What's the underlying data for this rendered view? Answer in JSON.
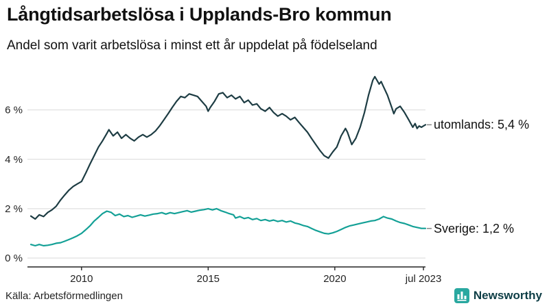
{
  "header": {
    "title": "Långtidsarbetslösa i Upplands-Bro kommun",
    "subtitle": "Andel som varit arbetslösa i minst ett år uppdelat på födelseland"
  },
  "footer": {
    "source": "Källa: Arbetsförmedlingen",
    "brand": "Newsworthy"
  },
  "colors": {
    "grid": "#d9d9d9",
    "axis": "#222222",
    "tick_text": "#222222",
    "label_text": "#111111",
    "connector": "#888888",
    "brand_teal": "#2aa8a0",
    "brand_dark": "#0d3d45"
  },
  "chart_data": {
    "type": "line",
    "title": "Långtidsarbetslösa i Upplands-Bro kommun",
    "subtitle": "Andel som varit arbetslösa i minst ett år uppdelat på födelseland",
    "xlabel": "",
    "ylabel": "",
    "xlim": [
      2008.0,
      2023.58
    ],
    "ylim": [
      0,
      7.6
    ],
    "grid": "horizontal",
    "legend_position": "right-end-labels",
    "yticks": [
      {
        "value": 0,
        "label": "0 %"
      },
      {
        "value": 2,
        "label": "2 %"
      },
      {
        "value": 4,
        "label": "4 %"
      },
      {
        "value": 6,
        "label": "6 %"
      }
    ],
    "xticks": [
      {
        "value": 2010,
        "label": "2010"
      },
      {
        "value": 2015,
        "label": "2015"
      },
      {
        "value": 2020,
        "label": "2020"
      },
      {
        "value": 2023.5,
        "label": "jul 2023"
      }
    ],
    "series": [
      {
        "name": "utomlands",
        "end_label": "utomlands: 5,4 %",
        "color": "#1d3c43",
        "points": [
          [
            2008.0,
            1.7
          ],
          [
            2008.17,
            1.58
          ],
          [
            2008.33,
            1.75
          ],
          [
            2008.5,
            1.68
          ],
          [
            2008.67,
            1.85
          ],
          [
            2008.83,
            1.95
          ],
          [
            2009.0,
            2.1
          ],
          [
            2009.17,
            2.35
          ],
          [
            2009.33,
            2.55
          ],
          [
            2009.5,
            2.75
          ],
          [
            2009.67,
            2.9
          ],
          [
            2009.83,
            3.0
          ],
          [
            2010.0,
            3.1
          ],
          [
            2010.17,
            3.45
          ],
          [
            2010.33,
            3.8
          ],
          [
            2010.5,
            4.15
          ],
          [
            2010.67,
            4.5
          ],
          [
            2010.83,
            4.75
          ],
          [
            2011.0,
            5.05
          ],
          [
            2011.08,
            5.2
          ],
          [
            2011.25,
            4.95
          ],
          [
            2011.42,
            5.1
          ],
          [
            2011.58,
            4.85
          ],
          [
            2011.75,
            5.0
          ],
          [
            2011.92,
            4.85
          ],
          [
            2012.08,
            4.75
          ],
          [
            2012.25,
            4.9
          ],
          [
            2012.42,
            5.0
          ],
          [
            2012.58,
            4.9
          ],
          [
            2012.75,
            5.0
          ],
          [
            2012.92,
            5.15
          ],
          [
            2013.08,
            5.35
          ],
          [
            2013.25,
            5.6
          ],
          [
            2013.42,
            5.85
          ],
          [
            2013.58,
            6.1
          ],
          [
            2013.75,
            6.35
          ],
          [
            2013.92,
            6.55
          ],
          [
            2014.08,
            6.5
          ],
          [
            2014.25,
            6.65
          ],
          [
            2014.42,
            6.6
          ],
          [
            2014.58,
            6.55
          ],
          [
            2014.75,
            6.35
          ],
          [
            2014.92,
            6.15
          ],
          [
            2015.0,
            5.95
          ],
          [
            2015.08,
            6.1
          ],
          [
            2015.25,
            6.35
          ],
          [
            2015.42,
            6.65
          ],
          [
            2015.58,
            6.7
          ],
          [
            2015.75,
            6.5
          ],
          [
            2015.92,
            6.6
          ],
          [
            2016.08,
            6.45
          ],
          [
            2016.25,
            6.55
          ],
          [
            2016.42,
            6.3
          ],
          [
            2016.58,
            6.4
          ],
          [
            2016.75,
            6.2
          ],
          [
            2016.92,
            6.25
          ],
          [
            2017.08,
            6.05
          ],
          [
            2017.25,
            5.95
          ],
          [
            2017.42,
            6.1
          ],
          [
            2017.58,
            5.9
          ],
          [
            2017.75,
            5.75
          ],
          [
            2017.92,
            5.85
          ],
          [
            2018.08,
            5.75
          ],
          [
            2018.25,
            5.6
          ],
          [
            2018.42,
            5.7
          ],
          [
            2018.58,
            5.5
          ],
          [
            2018.75,
            5.3
          ],
          [
            2018.92,
            5.1
          ],
          [
            2019.08,
            4.85
          ],
          [
            2019.25,
            4.6
          ],
          [
            2019.42,
            4.35
          ],
          [
            2019.58,
            4.15
          ],
          [
            2019.75,
            4.05
          ],
          [
            2019.92,
            4.3
          ],
          [
            2020.08,
            4.5
          ],
          [
            2020.25,
            4.95
          ],
          [
            2020.42,
            5.25
          ],
          [
            2020.5,
            5.1
          ],
          [
            2020.67,
            4.6
          ],
          [
            2020.83,
            4.85
          ],
          [
            2021.0,
            5.3
          ],
          [
            2021.17,
            5.9
          ],
          [
            2021.33,
            6.6
          ],
          [
            2021.5,
            7.2
          ],
          [
            2021.58,
            7.35
          ],
          [
            2021.75,
            7.05
          ],
          [
            2021.83,
            7.15
          ],
          [
            2021.92,
            6.95
          ],
          [
            2022.08,
            6.6
          ],
          [
            2022.25,
            6.1
          ],
          [
            2022.33,
            5.85
          ],
          [
            2022.42,
            6.05
          ],
          [
            2022.58,
            6.15
          ],
          [
            2022.75,
            5.9
          ],
          [
            2022.92,
            5.6
          ],
          [
            2023.08,
            5.3
          ],
          [
            2023.17,
            5.45
          ],
          [
            2023.25,
            5.25
          ],
          [
            2023.33,
            5.35
          ],
          [
            2023.42,
            5.3
          ],
          [
            2023.5,
            5.35
          ],
          [
            2023.58,
            5.4
          ]
        ]
      },
      {
        "name": "Sverige",
        "end_label": "Sverige: 1,2 %",
        "color": "#13a096",
        "points": [
          [
            2008.0,
            0.55
          ],
          [
            2008.17,
            0.5
          ],
          [
            2008.33,
            0.55
          ],
          [
            2008.5,
            0.5
          ],
          [
            2008.67,
            0.52
          ],
          [
            2008.83,
            0.55
          ],
          [
            2009.0,
            0.6
          ],
          [
            2009.17,
            0.62
          ],
          [
            2009.33,
            0.68
          ],
          [
            2009.5,
            0.75
          ],
          [
            2009.67,
            0.82
          ],
          [
            2009.83,
            0.9
          ],
          [
            2010.0,
            1.0
          ],
          [
            2010.17,
            1.15
          ],
          [
            2010.33,
            1.3
          ],
          [
            2010.5,
            1.5
          ],
          [
            2010.67,
            1.65
          ],
          [
            2010.83,
            1.8
          ],
          [
            2011.0,
            1.9
          ],
          [
            2011.17,
            1.85
          ],
          [
            2011.33,
            1.72
          ],
          [
            2011.5,
            1.78
          ],
          [
            2011.67,
            1.68
          ],
          [
            2011.83,
            1.72
          ],
          [
            2012.0,
            1.65
          ],
          [
            2012.17,
            1.7
          ],
          [
            2012.33,
            1.75
          ],
          [
            2012.5,
            1.7
          ],
          [
            2012.67,
            1.74
          ],
          [
            2012.83,
            1.78
          ],
          [
            2013.0,
            1.8
          ],
          [
            2013.17,
            1.84
          ],
          [
            2013.33,
            1.78
          ],
          [
            2013.5,
            1.84
          ],
          [
            2013.67,
            1.8
          ],
          [
            2013.83,
            1.84
          ],
          [
            2014.0,
            1.88
          ],
          [
            2014.17,
            1.92
          ],
          [
            2014.33,
            1.86
          ],
          [
            2014.5,
            1.9
          ],
          [
            2014.67,
            1.94
          ],
          [
            2014.83,
            1.96
          ],
          [
            2015.0,
            2.0
          ],
          [
            2015.17,
            1.95
          ],
          [
            2015.33,
            2.0
          ],
          [
            2015.5,
            1.92
          ],
          [
            2015.67,
            1.86
          ],
          [
            2015.83,
            1.8
          ],
          [
            2016.0,
            1.75
          ],
          [
            2016.08,
            1.62
          ],
          [
            2016.25,
            1.68
          ],
          [
            2016.42,
            1.6
          ],
          [
            2016.58,
            1.64
          ],
          [
            2016.75,
            1.56
          ],
          [
            2016.92,
            1.6
          ],
          [
            2017.08,
            1.52
          ],
          [
            2017.25,
            1.56
          ],
          [
            2017.42,
            1.5
          ],
          [
            2017.58,
            1.54
          ],
          [
            2017.75,
            1.48
          ],
          [
            2017.92,
            1.52
          ],
          [
            2018.08,
            1.46
          ],
          [
            2018.25,
            1.5
          ],
          [
            2018.42,
            1.42
          ],
          [
            2018.58,
            1.38
          ],
          [
            2018.75,
            1.32
          ],
          [
            2018.92,
            1.28
          ],
          [
            2019.08,
            1.2
          ],
          [
            2019.25,
            1.12
          ],
          [
            2019.42,
            1.06
          ],
          [
            2019.58,
            1.0
          ],
          [
            2019.75,
            0.98
          ],
          [
            2019.92,
            1.02
          ],
          [
            2020.08,
            1.08
          ],
          [
            2020.25,
            1.16
          ],
          [
            2020.42,
            1.24
          ],
          [
            2020.58,
            1.3
          ],
          [
            2020.75,
            1.34
          ],
          [
            2020.92,
            1.38
          ],
          [
            2021.08,
            1.42
          ],
          [
            2021.25,
            1.46
          ],
          [
            2021.42,
            1.5
          ],
          [
            2021.58,
            1.52
          ],
          [
            2021.75,
            1.58
          ],
          [
            2021.92,
            1.68
          ],
          [
            2022.08,
            1.62
          ],
          [
            2022.25,
            1.58
          ],
          [
            2022.42,
            1.5
          ],
          [
            2022.58,
            1.44
          ],
          [
            2022.75,
            1.4
          ],
          [
            2022.92,
            1.34
          ],
          [
            2023.08,
            1.28
          ],
          [
            2023.25,
            1.24
          ],
          [
            2023.42,
            1.2
          ],
          [
            2023.58,
            1.2
          ]
        ]
      }
    ]
  }
}
